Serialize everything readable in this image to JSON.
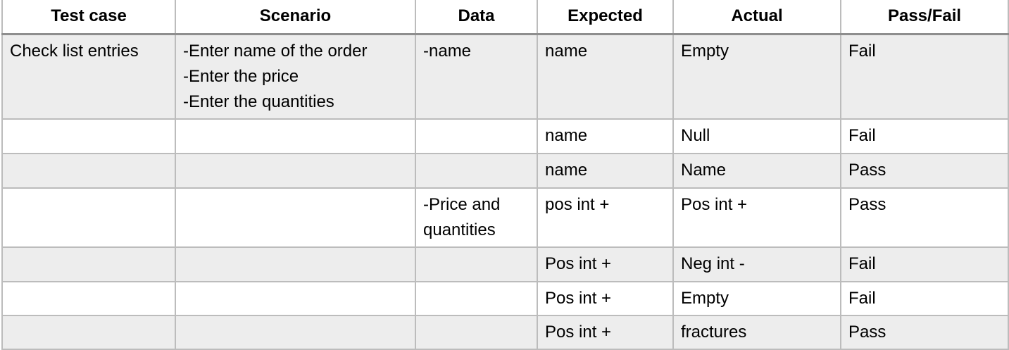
{
  "table": {
    "headers": [
      "Test case",
      "Scenario",
      "Data",
      "Expected",
      "Actual",
      "Pass/Fail"
    ],
    "rows": [
      {
        "test_case": "Check list entries",
        "scenario": [
          "-Enter name of the order",
          "-Enter the price",
          "-Enter the quantities"
        ],
        "data": "-name",
        "expected": "name",
        "actual": "Empty",
        "result": "Fail"
      },
      {
        "test_case": "",
        "scenario": [],
        "data": "",
        "expected": "name",
        "actual": "Null",
        "result": "Fail"
      },
      {
        "test_case": "",
        "scenario": [],
        "data": "",
        "expected": "name",
        "actual": "Name",
        "result": "Pass"
      },
      {
        "test_case": "",
        "scenario": [],
        "data": "-Price and quantities",
        "expected": "pos int +",
        "actual": "Pos int +",
        "result": "Pass"
      },
      {
        "test_case": "",
        "scenario": [],
        "data": "",
        "expected": "Pos int +",
        "actual": "Neg int -",
        "result": "Fail"
      },
      {
        "test_case": "",
        "scenario": [],
        "data": "",
        "expected": "Pos int +",
        "actual": "Empty",
        "result": "Fail"
      },
      {
        "test_case": "",
        "scenario": [],
        "data": "",
        "expected": "Pos int +",
        "actual": "fractures",
        "result": "Pass"
      }
    ]
  }
}
